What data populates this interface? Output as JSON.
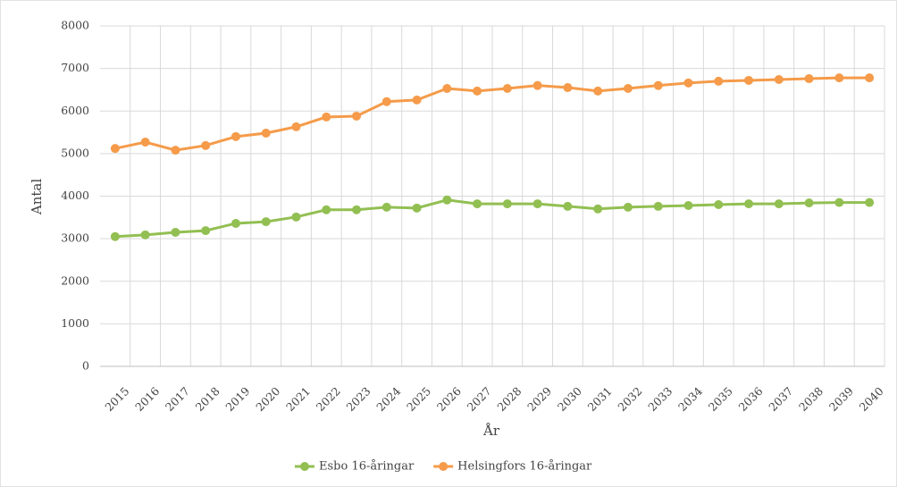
{
  "chart_data": {
    "type": "line",
    "x_label": "År",
    "y_label": "Antal",
    "categories": [
      "2015",
      "2016",
      "2017",
      "2018",
      "2019",
      "2020",
      "2021",
      "2022",
      "2023",
      "2024",
      "2025",
      "2026",
      "2027",
      "2028",
      "2029",
      "2030",
      "2031",
      "2032",
      "2033",
      "2034",
      "2035",
      "2036",
      "2037",
      "2038",
      "2039",
      "2040"
    ],
    "series": [
      {
        "name": "Esbo 16-åringar",
        "color": "#92bf52",
        "values": [
          3050,
          3090,
          3150,
          3190,
          3360,
          3400,
          3510,
          3680,
          3680,
          3740,
          3720,
          3910,
          3820,
          3820,
          3820,
          3760,
          3700,
          3740,
          3760,
          3780,
          3800,
          3820,
          3820,
          3840,
          3850,
          3850
        ]
      },
      {
        "name": "Helsingfors 16-åringar",
        "color": "#f59b4a",
        "values": [
          5120,
          5270,
          5080,
          5190,
          5400,
          5480,
          5630,
          5860,
          5880,
          6220,
          6260,
          6530,
          6470,
          6530,
          6600,
          6550,
          6470,
          6530,
          6600,
          6660,
          6700,
          6720,
          6740,
          6760,
          6780,
          6780
        ]
      }
    ],
    "ylim": [
      0,
      8000
    ],
    "yticks": [
      0,
      1000,
      2000,
      3000,
      4000,
      5000,
      6000,
      7000,
      8000
    ],
    "grid": true,
    "legend": "bottom"
  }
}
